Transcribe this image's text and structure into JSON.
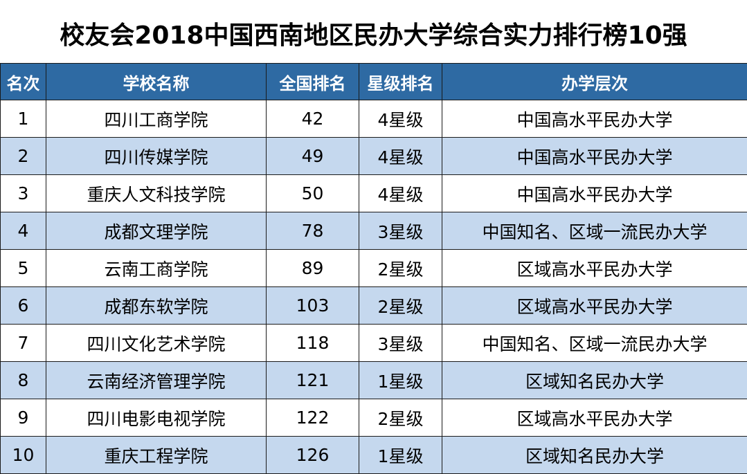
{
  "title": "校友会2018中国西南地区民办大学综合实力排行榜10强",
  "colors": {
    "header_bg": "#2e6aa3",
    "header_text": "#ffffff",
    "stripe_bg": "#c5d8ee",
    "row_bg": "#ffffff"
  },
  "table": {
    "headers": [
      "名次",
      "学校名称",
      "全国排名",
      "星级排名",
      "办学层次"
    ],
    "rows": [
      [
        "1",
        "四川工商学院",
        "42",
        "4星级",
        "中国高水平民办大学"
      ],
      [
        "2",
        "四川传媒学院",
        "49",
        "4星级",
        "中国高水平民办大学"
      ],
      [
        "3",
        "重庆人文科技学院",
        "50",
        "4星级",
        "中国高水平民办大学"
      ],
      [
        "4",
        "成都文理学院",
        "78",
        "3星级",
        "中国知名、区域一流民办大学"
      ],
      [
        "5",
        "云南工商学院",
        "89",
        "2星级",
        "区域高水平民办大学"
      ],
      [
        "6",
        "成都东软学院",
        "103",
        "2星级",
        "区域高水平民办大学"
      ],
      [
        "7",
        "四川文化艺术学院",
        "118",
        "3星级",
        "中国知名、区域一流民办大学"
      ],
      [
        "8",
        "云南经济管理学院",
        "121",
        "1星级",
        "区域知名民办大学"
      ],
      [
        "9",
        "四川电影电视学院",
        "122",
        "2星级",
        "区域高水平民办大学"
      ],
      [
        "10",
        "重庆工程学院",
        "126",
        "1星级",
        "区域知名民办大学"
      ]
    ]
  }
}
